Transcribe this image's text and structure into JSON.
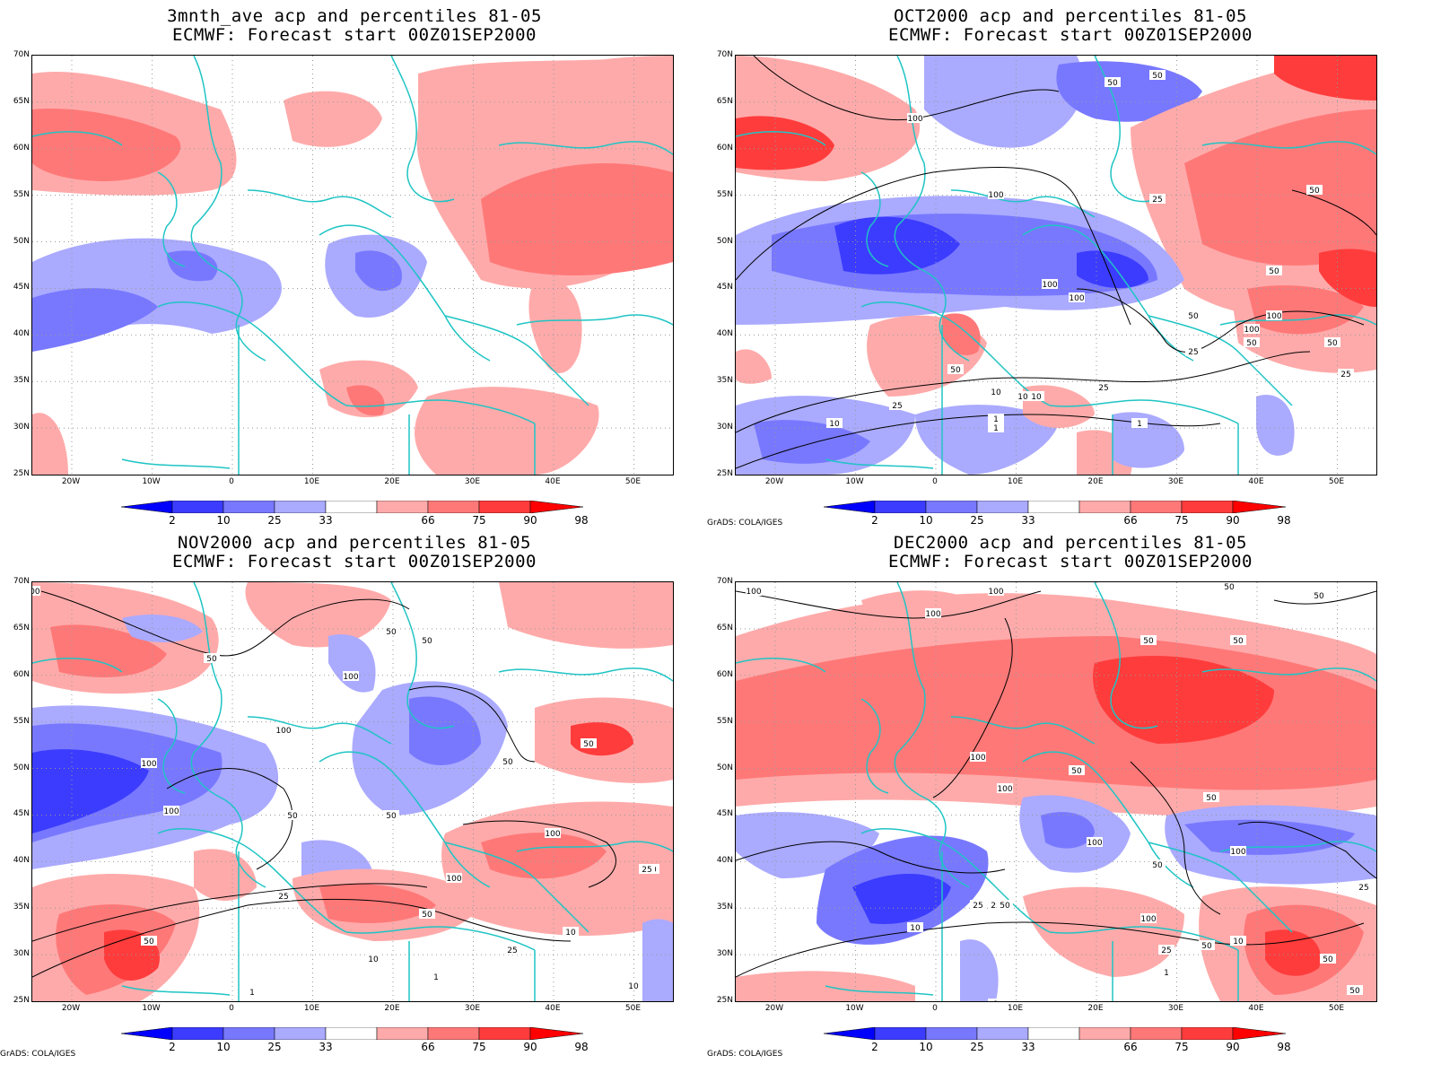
{
  "panels": [
    {
      "id": "p1",
      "title_line1": "3mnth_ave acp and percentiles 81-05",
      "title_line2": "ECMWF: Forecast start 00Z01SEP2000",
      "show_credit": false
    },
    {
      "id": "p2",
      "title_line1": "OCT2000 acp and percentiles 81-05",
      "title_line2": "ECMWF: Forecast start 00Z01SEP2000",
      "show_credit": true
    },
    {
      "id": "p3",
      "title_line1": "NOV2000 acp and percentiles 81-05",
      "title_line2": "ECMWF: Forecast start 00Z01SEP2000",
      "show_credit": true
    },
    {
      "id": "p4",
      "title_line1": "DEC2000 acp and percentiles 81-05",
      "title_line2": "ECMWF: Forecast start 00Z01SEP2000",
      "show_credit": true
    }
  ],
  "lat_labels": [
    "70N",
    "65N",
    "60N",
    "55N",
    "50N",
    "45N",
    "40N",
    "35N",
    "30N",
    "25N"
  ],
  "lon_labels": [
    "20W",
    "10W",
    "0",
    "10E",
    "20E",
    "30E",
    "40E",
    "50E"
  ],
  "colorbar": {
    "labels": [
      "2",
      "10",
      "25",
      "33",
      "66",
      "75",
      "90",
      "98"
    ],
    "colors": {
      "lt2": "#0000ff",
      "b2_10": "#3c3cff",
      "b10_25": "#7878ff",
      "b25_33": "#aaaaff",
      "b66_75": "#ffaaaa",
      "b75_90": "#ff7878",
      "b90_98": "#ff3c3c",
      "gt98": "#ff0000"
    }
  },
  "credit": "GrADS: COLA/IGES",
  "coast_color": "#1fc4c4",
  "contour_labels": {
    "p2": [
      "100",
      "50",
      "50",
      "100",
      "50",
      "25",
      "50",
      "100",
      "100",
      "50",
      "100",
      "100",
      "50",
      "50",
      "25",
      "10",
      "25",
      "10",
      "10",
      "1",
      "25",
      "1",
      "10",
      "1",
      "50",
      "25"
    ],
    "p3": [
      "100",
      "50",
      "50",
      "100",
      "100",
      "50",
      "50",
      "100",
      "100",
      "50",
      "100",
      "50",
      "100",
      "50",
      "25",
      "50",
      "10",
      "25",
      "1",
      "10",
      "1",
      "50",
      "25",
      "10",
      "50"
    ],
    "p4": [
      "100",
      "100",
      "50",
      "50",
      "100",
      "50",
      "50",
      "100",
      "50",
      "100",
      "100",
      "100",
      "25",
      "50",
      "10",
      "25",
      "50",
      "1",
      "1",
      "25",
      "50",
      "100",
      "10",
      "50",
      "25",
      "50",
      "50"
    ]
  }
}
